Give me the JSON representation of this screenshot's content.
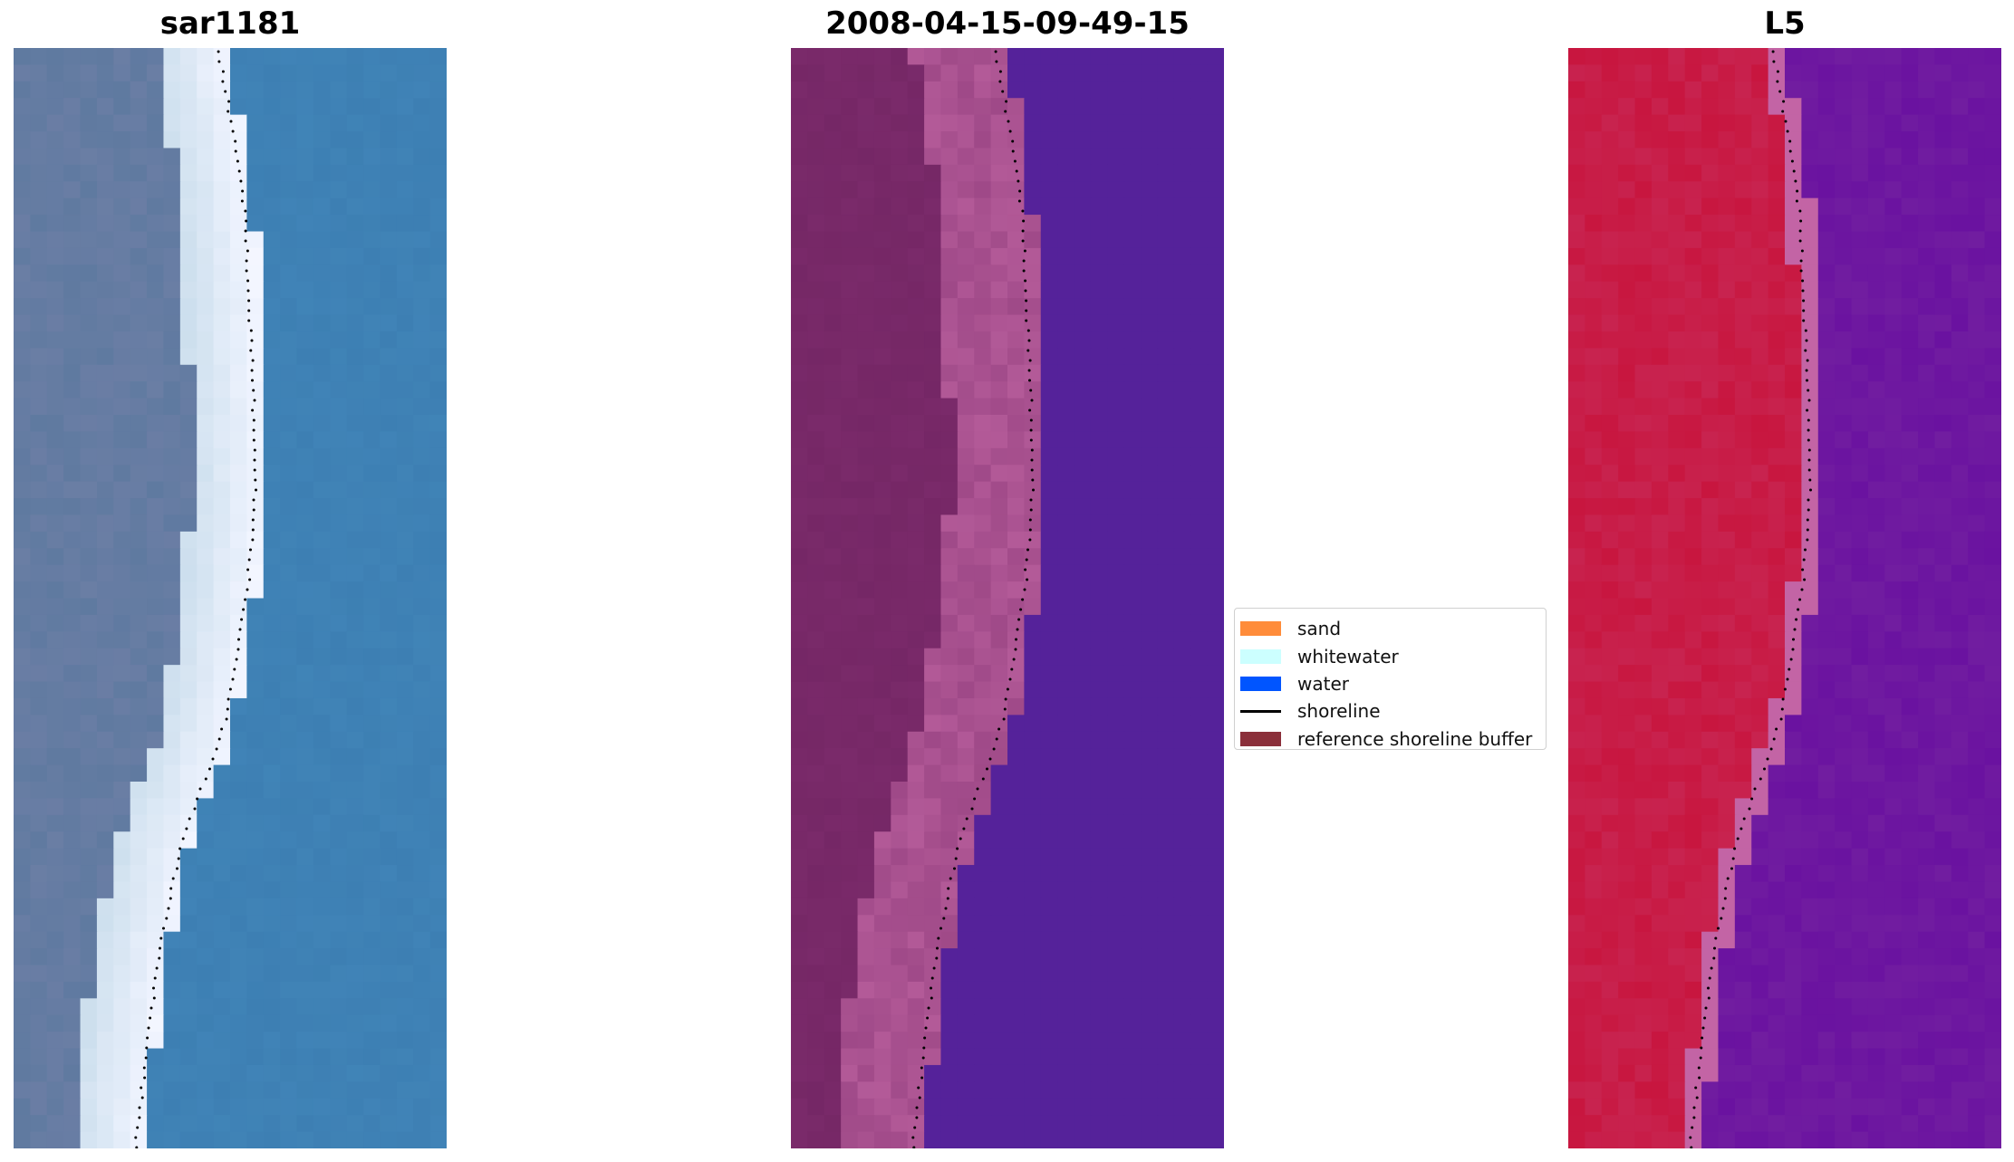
{
  "panels": [
    {
      "title": "sar1181",
      "kind": "rgb"
    },
    {
      "title": "2008-04-15-09-49-15",
      "kind": "classification"
    },
    {
      "title": "L5",
      "kind": "mndwi"
    }
  ],
  "legend": {
    "items": [
      {
        "label": "sand",
        "color": "#ff8c3a",
        "type": "patch"
      },
      {
        "label": "whitewater",
        "color": "#ccffff",
        "type": "patch"
      },
      {
        "label": "water",
        "color": "#0055ff",
        "type": "patch"
      },
      {
        "label": "shoreline",
        "color": "#000000",
        "type": "line"
      },
      {
        "label": "reference shoreline buffer",
        "color": "#8b2f3a",
        "type": "patch"
      }
    ]
  },
  "colors": {
    "rgb_land": "#5f7aa0",
    "rgb_beach": "#f0f4ff",
    "rgb_water": "#3d7fb3",
    "cls_land": "#7a2a6a",
    "cls_sand": "#b35a98",
    "cls_water": "#55229a",
    "cls_buffer": "#c2384c",
    "mndwi_land": "#c8163f",
    "mndwi_water": "#6a12a0",
    "shoreline": "#000000"
  }
}
